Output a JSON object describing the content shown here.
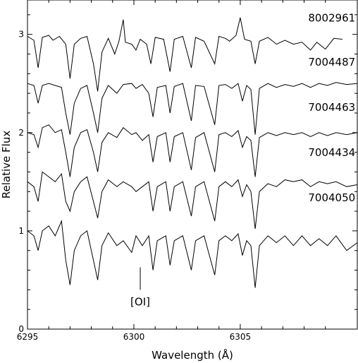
{
  "chart_data": {
    "type": "line",
    "title": "",
    "xlabel": "Wavelength (Å)",
    "ylabel": "Relative Flux",
    "xlim": [
      6295,
      6310.5
    ],
    "ylim": [
      0,
      3.35
    ],
    "xticks": [
      {
        "value": 6295,
        "label": "6295"
      },
      {
        "value": 6300,
        "label": "6300"
      },
      {
        "value": 6305,
        "label": "6305"
      }
    ],
    "yticks": [
      {
        "value": 0,
        "label": "0"
      },
      {
        "value": 1,
        "label": "1"
      },
      {
        "value": 2,
        "label": "2"
      },
      {
        "value": 3,
        "label": "3"
      }
    ],
    "grid": false,
    "annotations": [
      {
        "text": "[OI]",
        "x": 6300.3,
        "line_from": 0.63,
        "line_to": 0.4,
        "text_y": 0.24
      }
    ],
    "series": [
      {
        "name": "8002961",
        "label_x": 6309.3,
        "label_y": 3.13,
        "color": "#000000",
        "points": [
          [
            6295,
            2.98
          ],
          [
            6295.3,
            2.94
          ],
          [
            6295.5,
            2.66
          ],
          [
            6295.7,
            2.97
          ],
          [
            6296,
            2.99
          ],
          [
            6296.2,
            2.94
          ],
          [
            6296.5,
            2.98
          ],
          [
            6296.8,
            2.9
          ],
          [
            6297,
            2.55
          ],
          [
            6297.2,
            2.9
          ],
          [
            6297.5,
            2.96
          ],
          [
            6297.8,
            2.98
          ],
          [
            6298.1,
            2.7
          ],
          [
            6298.3,
            2.42
          ],
          [
            6298.5,
            2.82
          ],
          [
            6298.8,
            2.96
          ],
          [
            6299.1,
            2.8
          ],
          [
            6299.3,
            2.93
          ],
          [
            6299.5,
            3.15
          ],
          [
            6299.6,
            2.92
          ],
          [
            6299.9,
            2.9
          ],
          [
            6300.1,
            2.84
          ],
          [
            6300.3,
            2.95
          ],
          [
            6300.6,
            2.9
          ],
          [
            6300.8,
            2.7
          ],
          [
            6301.0,
            2.97
          ],
          [
            6301.4,
            2.95
          ],
          [
            6301.7,
            2.62
          ],
          [
            6301.9,
            2.95
          ],
          [
            6302.3,
            2.98
          ],
          [
            6302.7,
            2.66
          ],
          [
            6302.9,
            2.97
          ],
          [
            6303.3,
            2.93
          ],
          [
            6303.8,
            2.7
          ],
          [
            6304.0,
            2.98
          ],
          [
            6304.3,
            2.96
          ],
          [
            6304.5,
            2.93
          ],
          [
            6304.8,
            2.99
          ],
          [
            6305.0,
            3.17
          ],
          [
            6305.2,
            2.95
          ],
          [
            6305.5,
            2.93
          ],
          [
            6305.7,
            2.7
          ],
          [
            6305.9,
            2.93
          ],
          [
            6306.3,
            2.97
          ],
          [
            6306.7,
            2.9
          ],
          [
            6307.1,
            2.94
          ],
          [
            6307.5,
            2.9
          ],
          [
            6307.9,
            2.92
          ],
          [
            6308.3,
            2.84
          ],
          [
            6308.6,
            2.92
          ],
          [
            6309.0,
            2.85
          ],
          [
            6309.4,
            2.96
          ],
          [
            6309.8,
            2.95
          ]
        ]
      },
      {
        "name": "7004487",
        "label_x": 6309.3,
        "label_y": 2.68,
        "color": "#000000",
        "points": [
          [
            6295,
            2.5
          ],
          [
            6295.3,
            2.48
          ],
          [
            6295.5,
            2.3
          ],
          [
            6295.7,
            2.48
          ],
          [
            6296,
            2.5
          ],
          [
            6296.3,
            2.48
          ],
          [
            6296.6,
            2.46
          ],
          [
            6296.8,
            2.2
          ],
          [
            6297.0,
            1.98
          ],
          [
            6297.2,
            2.3
          ],
          [
            6297.5,
            2.45
          ],
          [
            6297.8,
            2.48
          ],
          [
            6298.1,
            2.2
          ],
          [
            6298.3,
            2.0
          ],
          [
            6298.5,
            2.35
          ],
          [
            6298.8,
            2.48
          ],
          [
            6299.2,
            2.4
          ],
          [
            6299.5,
            2.49
          ],
          [
            6299.9,
            2.5
          ],
          [
            6300.1,
            2.45
          ],
          [
            6300.4,
            2.49
          ],
          [
            6300.7,
            2.4
          ],
          [
            6300.9,
            2.16
          ],
          [
            6301.1,
            2.46
          ],
          [
            6301.5,
            2.48
          ],
          [
            6301.7,
            2.2
          ],
          [
            6301.9,
            2.47
          ],
          [
            6302.3,
            2.5
          ],
          [
            6302.7,
            2.12
          ],
          [
            6302.9,
            2.48
          ],
          [
            6303.3,
            2.47
          ],
          [
            6303.8,
            2.08
          ],
          [
            6304.0,
            2.48
          ],
          [
            6304.3,
            2.49
          ],
          [
            6304.6,
            2.45
          ],
          [
            6304.9,
            2.5
          ],
          [
            6305.1,
            2.32
          ],
          [
            6305.3,
            2.48
          ],
          [
            6305.5,
            2.44
          ],
          [
            6305.7,
            1.98
          ],
          [
            6305.9,
            2.45
          ],
          [
            6306.3,
            2.5
          ],
          [
            6306.7,
            2.46
          ],
          [
            6307.1,
            2.49
          ],
          [
            6307.5,
            2.47
          ],
          [
            6307.9,
            2.5
          ],
          [
            6308.3,
            2.46
          ],
          [
            6308.7,
            2.5
          ],
          [
            6309.1,
            2.48
          ],
          [
            6309.5,
            2.51
          ],
          [
            6310.0,
            2.49
          ],
          [
            6310.5,
            2.5
          ]
        ]
      },
      {
        "name": "7004463",
        "label_x": 6309.3,
        "label_y": 2.22,
        "color": "#000000",
        "points": [
          [
            6295,
            2.0
          ],
          [
            6295.3,
            1.98
          ],
          [
            6295.5,
            1.85
          ],
          [
            6295.7,
            2.05
          ],
          [
            6296,
            2.08
          ],
          [
            6296.3,
            2.0
          ],
          [
            6296.6,
            2.03
          ],
          [
            6296.8,
            1.8
          ],
          [
            6297.0,
            1.55
          ],
          [
            6297.2,
            1.85
          ],
          [
            6297.5,
            2.0
          ],
          [
            6297.8,
            2.03
          ],
          [
            6298.1,
            1.8
          ],
          [
            6298.3,
            1.6
          ],
          [
            6298.5,
            1.9
          ],
          [
            6298.8,
            2.0
          ],
          [
            6299.2,
            1.95
          ],
          [
            6299.5,
            2.05
          ],
          [
            6299.9,
            1.98
          ],
          [
            6300.1,
            2.0
          ],
          [
            6300.4,
            1.92
          ],
          [
            6300.7,
            1.98
          ],
          [
            6300.9,
            1.7
          ],
          [
            6301.1,
            1.96
          ],
          [
            6301.5,
            2.0
          ],
          [
            6301.7,
            1.7
          ],
          [
            6301.9,
            1.96
          ],
          [
            6302.3,
            2.0
          ],
          [
            6302.7,
            1.62
          ],
          [
            6302.9,
            1.95
          ],
          [
            6303.3,
            2.0
          ],
          [
            6303.8,
            1.6
          ],
          [
            6304.0,
            1.98
          ],
          [
            6304.3,
            2.0
          ],
          [
            6304.6,
            1.96
          ],
          [
            6304.9,
            2.02
          ],
          [
            6305.1,
            1.85
          ],
          [
            6305.3,
            1.96
          ],
          [
            6305.5,
            1.92
          ],
          [
            6305.7,
            1.55
          ],
          [
            6305.9,
            1.95
          ],
          [
            6306.3,
            2.0
          ],
          [
            6306.7,
            1.97
          ],
          [
            6307.1,
            2.0
          ],
          [
            6307.5,
            1.98
          ],
          [
            6307.9,
            2.0
          ],
          [
            6308.3,
            1.96
          ],
          [
            6308.7,
            2.0
          ],
          [
            6309.1,
            1.97
          ],
          [
            6309.5,
            2.0
          ],
          [
            6310.0,
            1.98
          ],
          [
            6310.5,
            2.0
          ]
        ]
      },
      {
        "name": "7004434",
        "label_x": 6309.3,
        "label_y": 1.76,
        "color": "#000000",
        "points": [
          [
            6295,
            1.5
          ],
          [
            6295.3,
            1.45
          ],
          [
            6295.5,
            1.3
          ],
          [
            6295.7,
            1.6
          ],
          [
            6296,
            1.55
          ],
          [
            6296.3,
            1.5
          ],
          [
            6296.6,
            1.58
          ],
          [
            6296.8,
            1.3
          ],
          [
            6297.0,
            1.2
          ],
          [
            6297.2,
            1.4
          ],
          [
            6297.5,
            1.5
          ],
          [
            6297.8,
            1.55
          ],
          [
            6298.1,
            1.3
          ],
          [
            6298.3,
            1.13
          ],
          [
            6298.5,
            1.4
          ],
          [
            6298.8,
            1.52
          ],
          [
            6299.2,
            1.45
          ],
          [
            6299.5,
            1.5
          ],
          [
            6299.9,
            1.45
          ],
          [
            6300.1,
            1.4
          ],
          [
            6300.4,
            1.45
          ],
          [
            6300.7,
            1.5
          ],
          [
            6300.9,
            1.2
          ],
          [
            6301.1,
            1.45
          ],
          [
            6301.5,
            1.5
          ],
          [
            6301.7,
            1.2
          ],
          [
            6301.9,
            1.45
          ],
          [
            6302.3,
            1.5
          ],
          [
            6302.7,
            1.15
          ],
          [
            6302.9,
            1.45
          ],
          [
            6303.3,
            1.5
          ],
          [
            6303.8,
            1.1
          ],
          [
            6304.0,
            1.45
          ],
          [
            6304.3,
            1.5
          ],
          [
            6304.6,
            1.45
          ],
          [
            6304.9,
            1.52
          ],
          [
            6305.1,
            1.35
          ],
          [
            6305.3,
            1.47
          ],
          [
            6305.5,
            1.4
          ],
          [
            6305.7,
            1.02
          ],
          [
            6305.9,
            1.4
          ],
          [
            6306.3,
            1.48
          ],
          [
            6306.7,
            1.45
          ],
          [
            6307.1,
            1.52
          ],
          [
            6307.5,
            1.5
          ],
          [
            6307.9,
            1.52
          ],
          [
            6308.3,
            1.45
          ],
          [
            6308.7,
            1.5
          ],
          [
            6309.1,
            1.48
          ],
          [
            6309.5,
            1.5
          ],
          [
            6310.0,
            1.45
          ],
          [
            6310.5,
            1.47
          ]
        ]
      },
      {
        "name": "7004050",
        "label_x": 6309.3,
        "label_y": 1.3,
        "color": "#000000",
        "points": [
          [
            6295,
            1.0
          ],
          [
            6295.3,
            0.95
          ],
          [
            6295.5,
            0.8
          ],
          [
            6295.7,
            1.0
          ],
          [
            6296,
            1.05
          ],
          [
            6296.3,
            0.95
          ],
          [
            6296.6,
            1.1
          ],
          [
            6296.8,
            0.7
          ],
          [
            6297.0,
            0.45
          ],
          [
            6297.2,
            0.8
          ],
          [
            6297.5,
            0.95
          ],
          [
            6297.8,
            1.0
          ],
          [
            6298.1,
            0.7
          ],
          [
            6298.3,
            0.5
          ],
          [
            6298.5,
            0.85
          ],
          [
            6298.8,
            0.98
          ],
          [
            6299.2,
            0.85
          ],
          [
            6299.5,
            0.9
          ],
          [
            6299.9,
            0.78
          ],
          [
            6300.1,
            0.95
          ],
          [
            6300.4,
            0.85
          ],
          [
            6300.7,
            0.95
          ],
          [
            6300.9,
            0.6
          ],
          [
            6301.1,
            0.9
          ],
          [
            6301.5,
            0.95
          ],
          [
            6301.7,
            0.65
          ],
          [
            6301.9,
            0.9
          ],
          [
            6302.3,
            0.95
          ],
          [
            6302.7,
            0.6
          ],
          [
            6302.9,
            0.9
          ],
          [
            6303.3,
            0.95
          ],
          [
            6303.8,
            0.55
          ],
          [
            6304.0,
            0.9
          ],
          [
            6304.3,
            0.95
          ],
          [
            6304.6,
            0.9
          ],
          [
            6304.9,
            0.97
          ],
          [
            6305.1,
            0.75
          ],
          [
            6305.3,
            0.9
          ],
          [
            6305.5,
            0.85
          ],
          [
            6305.7,
            0.42
          ],
          [
            6305.9,
            0.85
          ],
          [
            6306.3,
            0.95
          ],
          [
            6306.7,
            0.88
          ],
          [
            6307.1,
            0.95
          ],
          [
            6307.5,
            0.85
          ],
          [
            6307.9,
            0.95
          ],
          [
            6308.3,
            0.85
          ],
          [
            6308.7,
            0.92
          ],
          [
            6309.1,
            0.85
          ],
          [
            6309.5,
            0.95
          ],
          [
            6310.0,
            0.8
          ],
          [
            6310.5,
            0.88
          ]
        ]
      }
    ]
  }
}
